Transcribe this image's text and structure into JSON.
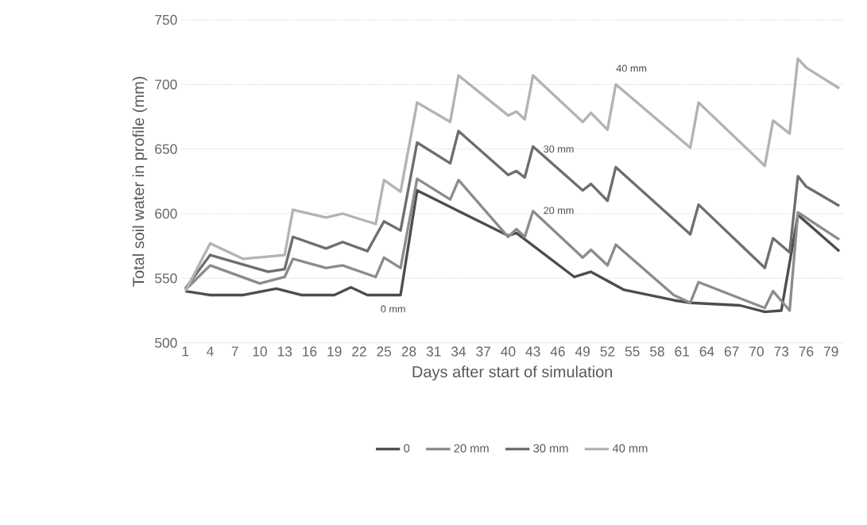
{
  "chart_data": {
    "type": "line",
    "xlabel": "Days after start of simulation",
    "ylabel": "Total soil water in profile (mm)",
    "xlim": [
      0.5,
      80.5
    ],
    "xticks": [
      1,
      4,
      7,
      10,
      13,
      16,
      19,
      22,
      25,
      28,
      31,
      34,
      37,
      40,
      43,
      46,
      49,
      52,
      55,
      58,
      61,
      64,
      67,
      70,
      73,
      76,
      79
    ],
    "ylim": [
      500,
      750
    ],
    "yticks": [
      500,
      550,
      600,
      650,
      700,
      750
    ],
    "grid": "y",
    "legend": "bottom",
    "marker": "none",
    "line_style": "solid",
    "series": [
      {
        "name": "0",
        "color": "#4d4d4d",
        "x": [
          1,
          4,
          8,
          12,
          15,
          19,
          21,
          23,
          27,
          29,
          34,
          40,
          41,
          48,
          50,
          54,
          60,
          62,
          68,
          71,
          73,
          75,
          80
        ],
        "values": [
          540,
          537,
          537,
          542,
          537,
          537,
          543,
          537,
          537,
          618,
          602,
          583,
          585,
          551,
          555,
          541,
          533,
          531,
          529,
          524,
          525,
          599,
          571
        ]
      },
      {
        "name": "20 mm",
        "color": "#8c8c8c",
        "x": [
          1,
          4,
          10,
          13,
          14,
          18,
          20,
          24,
          25,
          27,
          29,
          33,
          34,
          40,
          41,
          42,
          43,
          49,
          50,
          52,
          53,
          60,
          62,
          63,
          71,
          72,
          74,
          75,
          80
        ],
        "values": [
          541,
          560,
          546,
          551,
          565,
          558,
          560,
          551,
          566,
          558,
          627,
          611,
          626,
          582,
          588,
          582,
          602,
          566,
          572,
          560,
          576,
          537,
          531,
          547,
          527,
          540,
          525,
          601,
          580
        ]
      },
      {
        "name": "30 mm",
        "color": "#6e6e6e",
        "x": [
          1,
          4,
          11,
          13,
          14,
          18,
          20,
          23,
          25,
          27,
          29,
          33,
          34,
          40,
          41,
          42,
          43,
          49,
          50,
          52,
          53,
          62,
          63,
          71,
          72,
          74,
          75,
          76,
          80
        ],
        "values": [
          542,
          568,
          555,
          557,
          582,
          573,
          578,
          571,
          594,
          587,
          655,
          639,
          664,
          630,
          633,
          628,
          652,
          618,
          623,
          610,
          636,
          584,
          607,
          558,
          581,
          570,
          629,
          621,
          606
        ]
      },
      {
        "name": "40 mm",
        "color": "#b3b3b3",
        "x": [
          1,
          4,
          8,
          13,
          14,
          18,
          20,
          24,
          25,
          27,
          29,
          33,
          34,
          40,
          41,
          42,
          43,
          49,
          50,
          52,
          53,
          62,
          63,
          71,
          72,
          74,
          75,
          76,
          80
        ],
        "values": [
          540,
          577,
          565,
          568,
          603,
          597,
          600,
          592,
          626,
          617,
          686,
          671,
          707,
          676,
          679,
          673,
          707,
          671,
          678,
          665,
          700,
          651,
          686,
          637,
          672,
          662,
          720,
          713,
          697
        ]
      }
    ],
    "annotations": [
      "40 mm",
      "30 mm",
      "20 mm",
      "0 mm"
    ]
  }
}
